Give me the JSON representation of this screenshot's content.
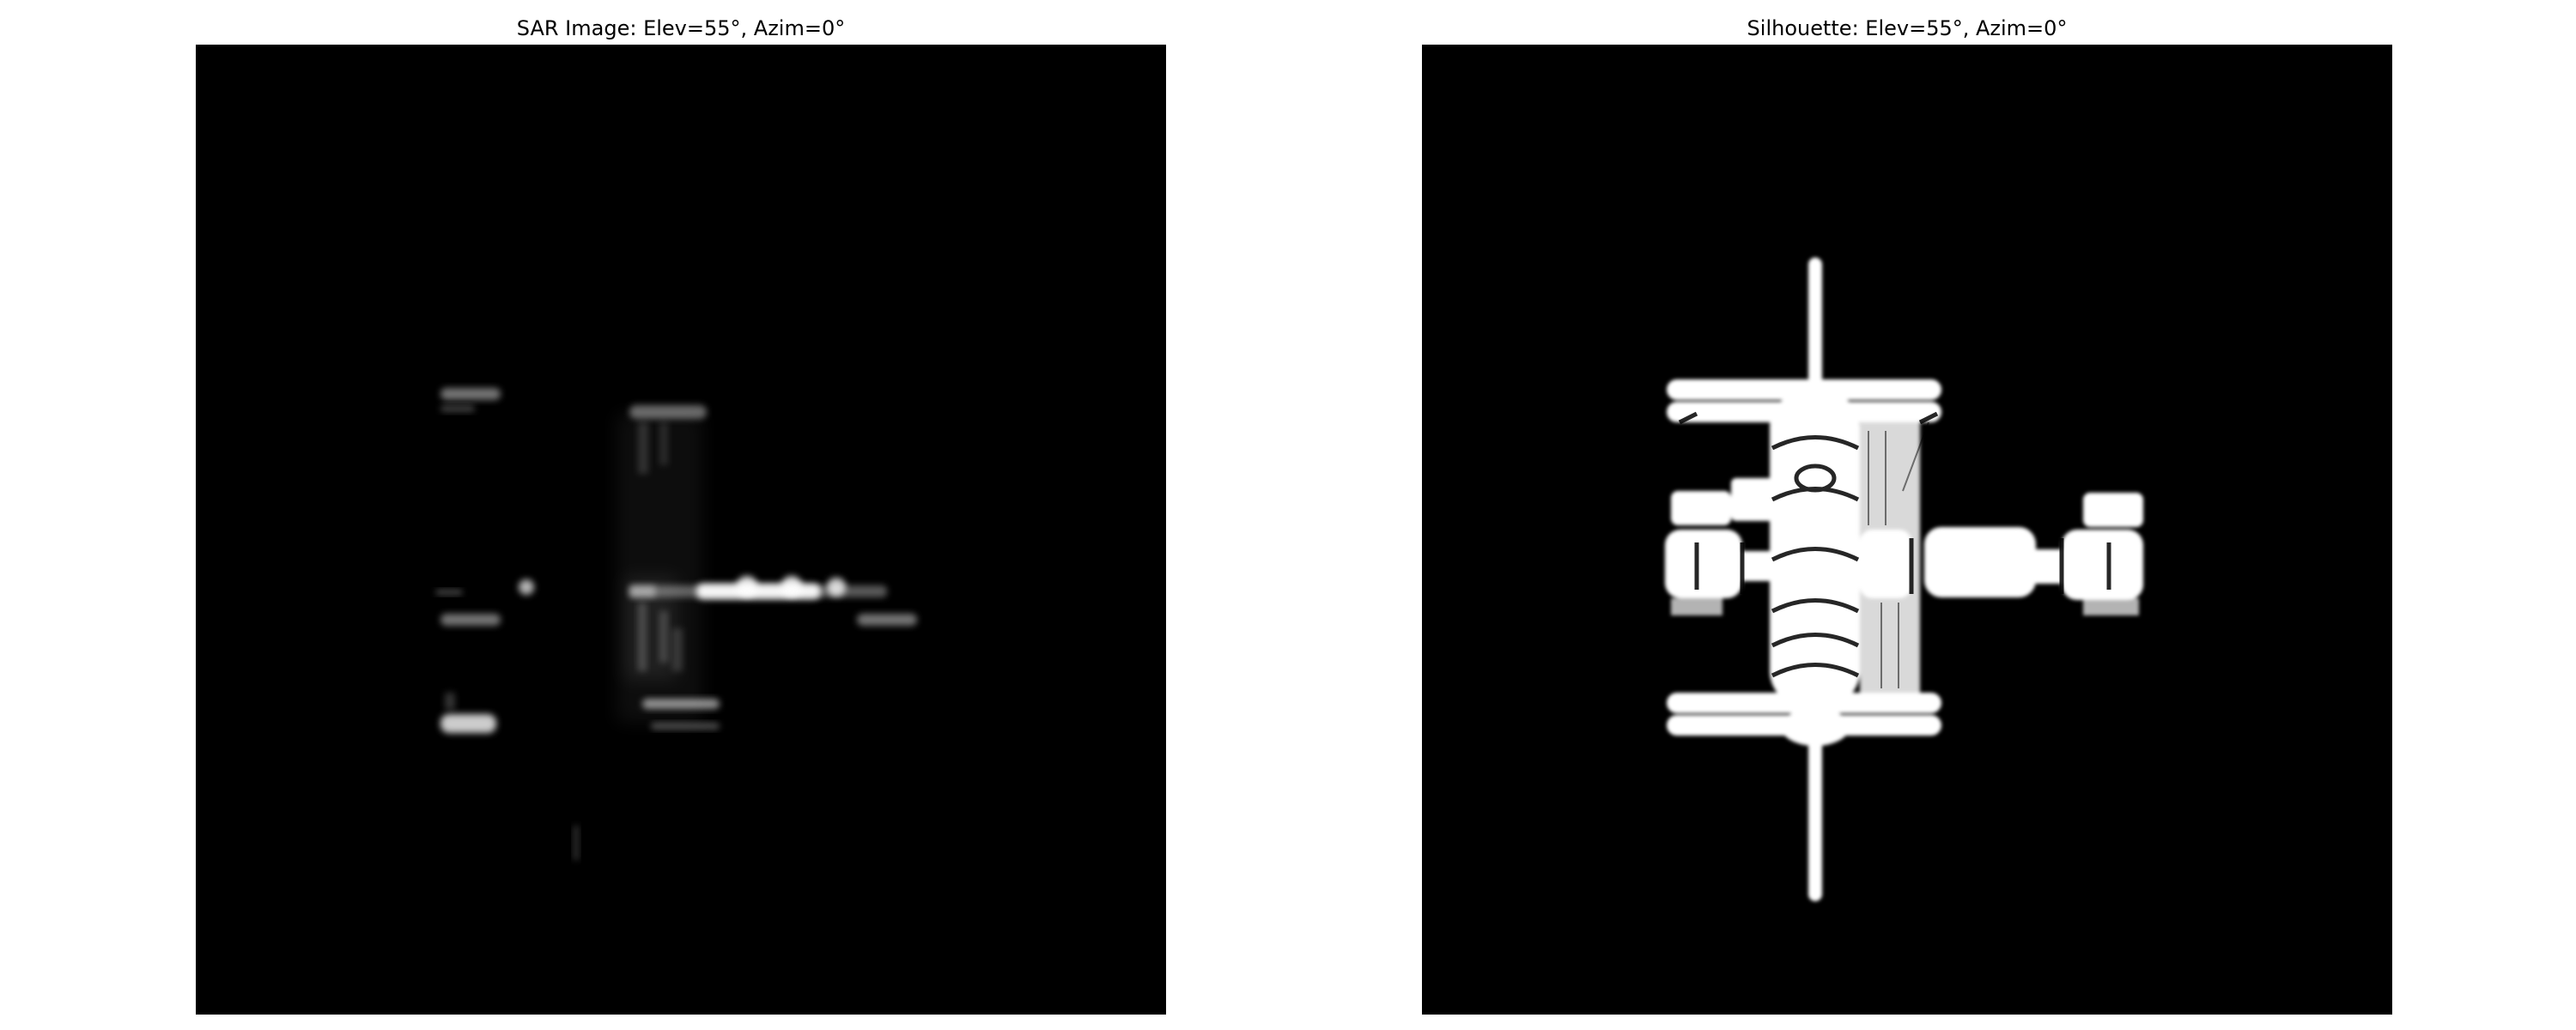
{
  "figure": {
    "panels": [
      {
        "title": "SAR Image: Elev=55°, Azim=0°"
      },
      {
        "title": "Silhouette: Elev=55°, Azim=0°"
      }
    ],
    "colors": {
      "background": "#ffffff",
      "image_background": "#000000",
      "bright": "#ffffff"
    }
  }
}
